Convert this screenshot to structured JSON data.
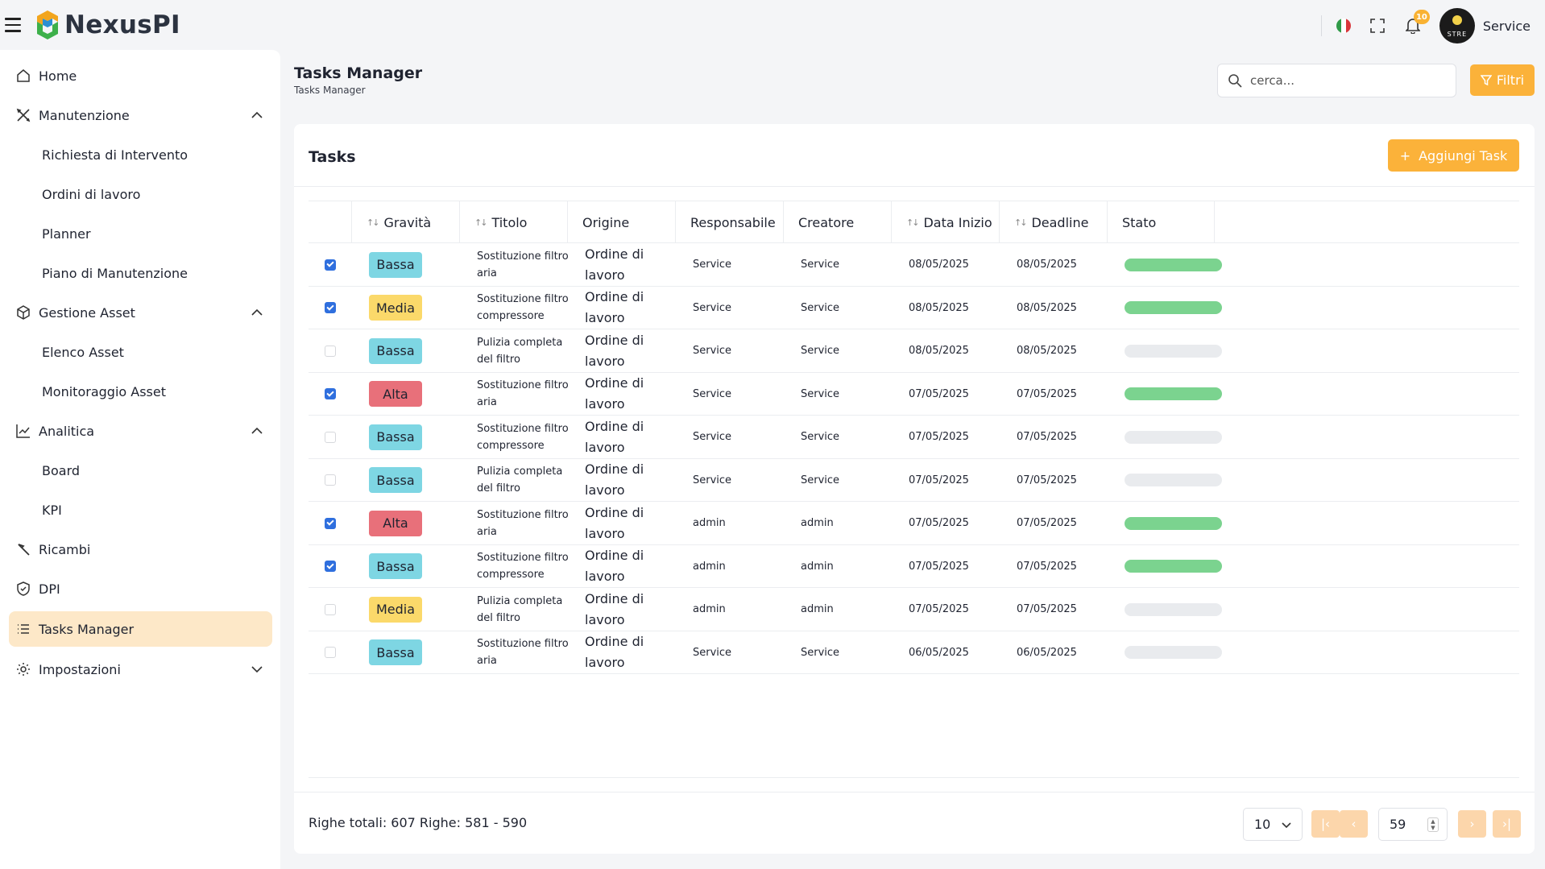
{
  "topbar": {
    "logo_text": "NexusPI",
    "notification_count": "10",
    "user_name": "Service",
    "avatar_text": "STRE"
  },
  "sidebar": {
    "items": [
      {
        "label": "Home",
        "icon": "home-icon"
      },
      {
        "label": "Manutenzione",
        "icon": "tools-icon",
        "expanded": true
      },
      {
        "label": "Richiesta di Intervento"
      },
      {
        "label": "Ordini di lavoro"
      },
      {
        "label": "Planner"
      },
      {
        "label": "Piano di Manutenzione"
      },
      {
        "label": "Gestione Asset",
        "icon": "cube-icon",
        "expanded": true
      },
      {
        "label": "Elenco Asset"
      },
      {
        "label": "Monitoraggio Asset"
      },
      {
        "label": "Analitica",
        "icon": "chart-line-icon",
        "expanded": true
      },
      {
        "label": "Board"
      },
      {
        "label": "KPI"
      },
      {
        "label": "Ricambi",
        "icon": "hammer-icon"
      },
      {
        "label": "DPI",
        "icon": "shield-icon"
      },
      {
        "label": "Tasks Manager",
        "icon": "list-icon",
        "active": true
      },
      {
        "label": "Impostazioni",
        "icon": "gear-icon",
        "expanded": false
      }
    ]
  },
  "header": {
    "title": "Tasks Manager",
    "breadcrumb": "Tasks Manager",
    "search_placeholder": "cerca...",
    "filter_label": "Filtri"
  },
  "card": {
    "title": "Tasks",
    "add_label": "Aggiungi Task"
  },
  "table": {
    "columns": [
      "Gravità",
      "Titolo",
      "Origine",
      "Responsabile",
      "Creatore",
      "Data Inizio",
      "Deadline",
      "Stato"
    ],
    "rows": [
      {
        "checked": true,
        "gravita": "Bassa",
        "titolo": [
          "Sostituzione filtro",
          "aria"
        ],
        "origine": [
          "Ordine di",
          "lavoro"
        ],
        "responsabile": "Service",
        "creatore": "Service",
        "data_inizio": "08/05/2025",
        "deadline": "08/05/2025",
        "stato": 1
      },
      {
        "checked": true,
        "gravita": "Media",
        "titolo": [
          "Sostituzione filtro",
          "compressore"
        ],
        "origine": [
          "Ordine di",
          "lavoro"
        ],
        "responsabile": "Service",
        "creatore": "Service",
        "data_inizio": "08/05/2025",
        "deadline": "08/05/2025",
        "stato": 1
      },
      {
        "checked": false,
        "gravita": "Bassa",
        "titolo": [
          "Pulizia completa",
          "del filtro"
        ],
        "origine": [
          "Ordine di",
          "lavoro"
        ],
        "responsabile": "Service",
        "creatore": "Service",
        "data_inizio": "08/05/2025",
        "deadline": "08/05/2025",
        "stato": 0
      },
      {
        "checked": true,
        "gravita": "Alta",
        "titolo": [
          "Sostituzione filtro",
          "aria"
        ],
        "origine": [
          "Ordine di",
          "lavoro"
        ],
        "responsabile": "Service",
        "creatore": "Service",
        "data_inizio": "07/05/2025",
        "deadline": "07/05/2025",
        "stato": 1
      },
      {
        "checked": false,
        "gravita": "Bassa",
        "titolo": [
          "Sostituzione filtro",
          "compressore"
        ],
        "origine": [
          "Ordine di",
          "lavoro"
        ],
        "responsabile": "Service",
        "creatore": "Service",
        "data_inizio": "07/05/2025",
        "deadline": "07/05/2025",
        "stato": 0
      },
      {
        "checked": false,
        "gravita": "Bassa",
        "titolo": [
          "Pulizia completa",
          "del filtro"
        ],
        "origine": [
          "Ordine di",
          "lavoro"
        ],
        "responsabile": "Service",
        "creatore": "Service",
        "data_inizio": "07/05/2025",
        "deadline": "07/05/2025",
        "stato": 0
      },
      {
        "checked": true,
        "gravita": "Alta",
        "titolo": [
          "Sostituzione filtro",
          "aria"
        ],
        "origine": [
          "Ordine di",
          "lavoro"
        ],
        "responsabile": "admin",
        "creatore": "admin",
        "data_inizio": "07/05/2025",
        "deadline": "07/05/2025",
        "stato": 1
      },
      {
        "checked": true,
        "gravita": "Bassa",
        "titolo": [
          "Sostituzione filtro",
          "compressore"
        ],
        "origine": [
          "Ordine di",
          "lavoro"
        ],
        "responsabile": "admin",
        "creatore": "admin",
        "data_inizio": "07/05/2025",
        "deadline": "07/05/2025",
        "stato": 1
      },
      {
        "checked": false,
        "gravita": "Media",
        "titolo": [
          "Pulizia completa",
          "del filtro"
        ],
        "origine": [
          "Ordine di",
          "lavoro"
        ],
        "responsabile": "admin",
        "creatore": "admin",
        "data_inizio": "07/05/2025",
        "deadline": "07/05/2025",
        "stato": 0
      },
      {
        "checked": false,
        "gravita": "Bassa",
        "titolo": [
          "Sostituzione filtro",
          "aria"
        ],
        "origine": [
          "Ordine di",
          "lavoro"
        ],
        "responsabile": "Service",
        "creatore": "Service",
        "data_inizio": "06/05/2025",
        "deadline": "06/05/2025",
        "stato": 0
      }
    ]
  },
  "footer": {
    "total_text": "Righe totali: 607 Righe: 581 - 590",
    "page_size": "10",
    "page_number": "59"
  },
  "colors": {
    "accent": "#fbb23a",
    "accent_light": "#fcd6ab",
    "active_nav": "#fde8c8",
    "bassa": "#7ed6e3",
    "media": "#fbd96a",
    "alta": "#e8707a",
    "stato_done": "#7bd38f",
    "stato_empty": "#e9ebee",
    "checkbox": "#2f6fde"
  }
}
